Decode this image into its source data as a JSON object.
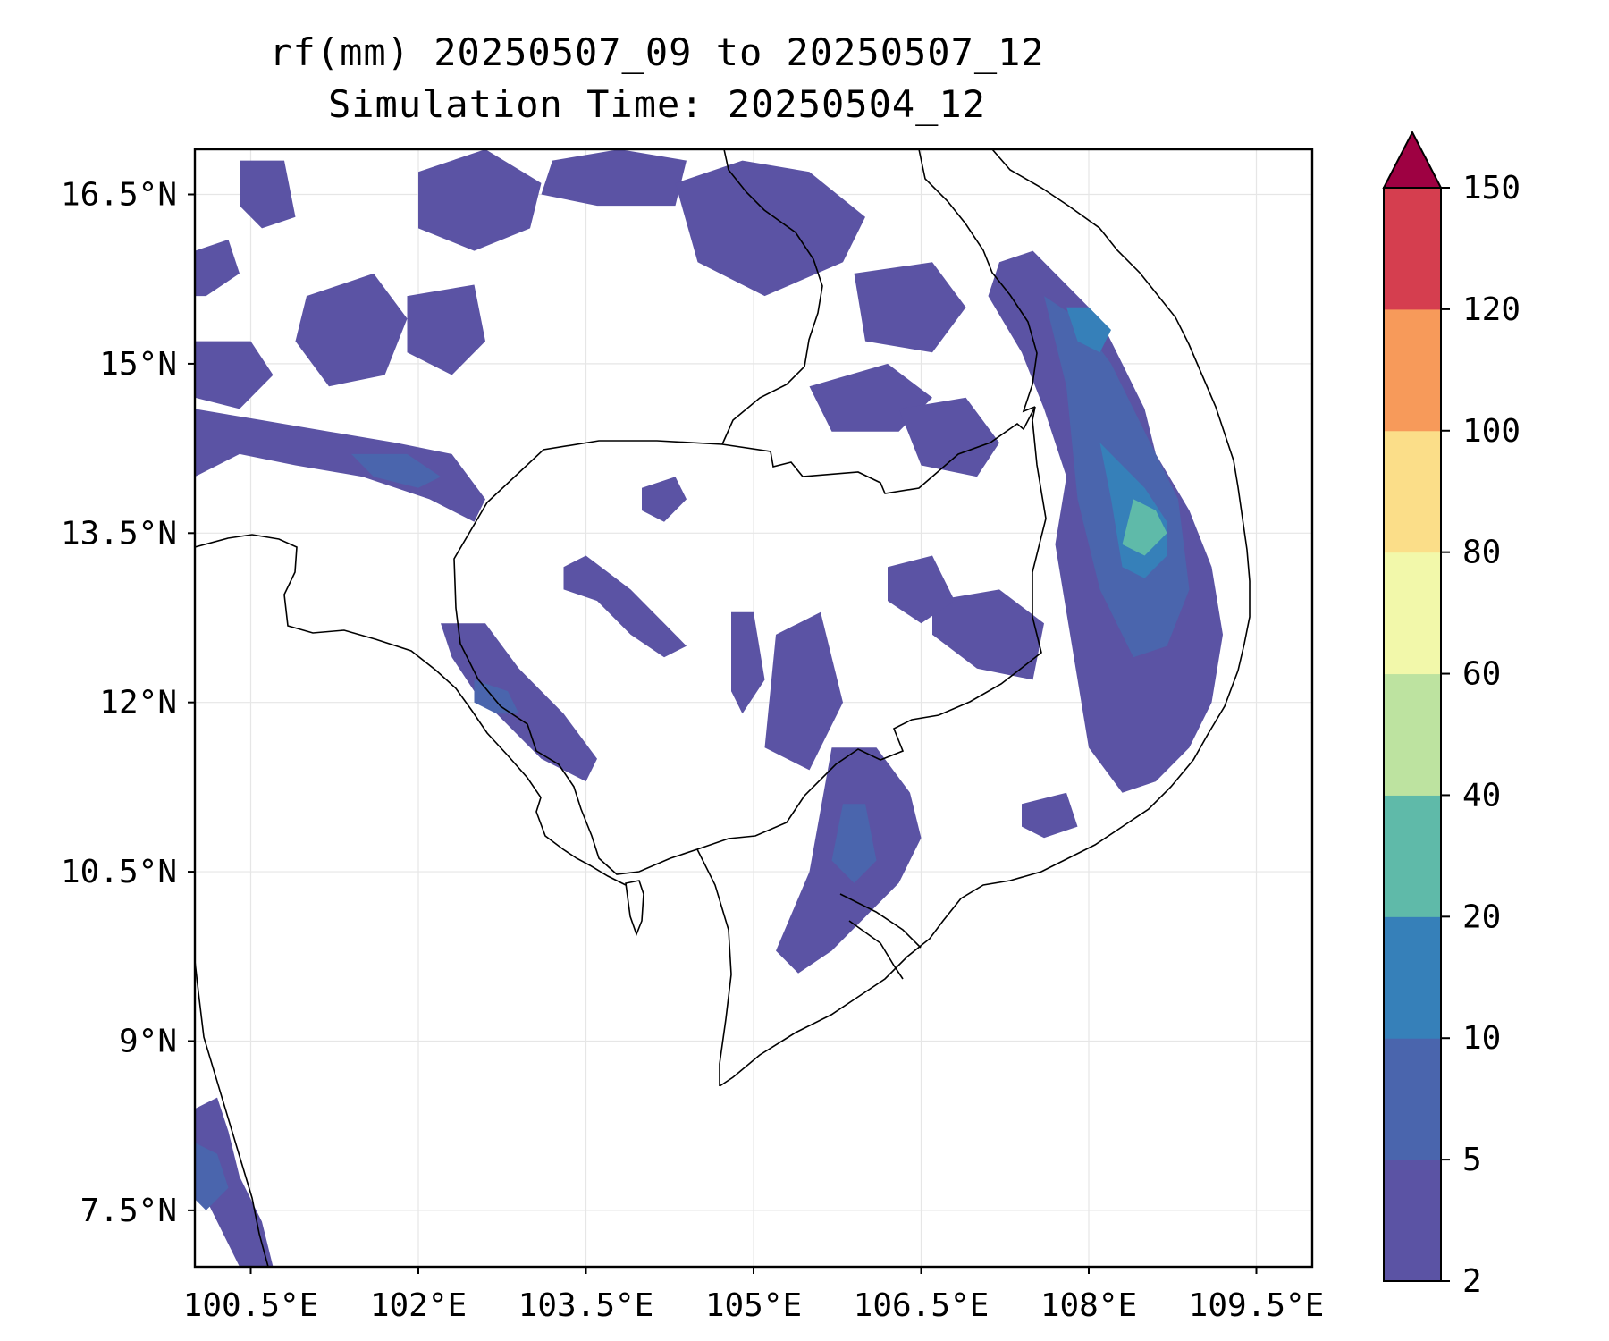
{
  "title": {
    "line1": "rf(mm) 20250507_09 to 20250507_12",
    "line2": "Simulation Time: 20250504_12"
  },
  "map": {
    "lon_range": [
      100.0,
      110.0
    ],
    "lat_range": [
      7.0,
      16.9
    ],
    "lon_ticks": [
      100.5,
      102,
      103.5,
      105,
      106.5,
      108,
      109.5
    ],
    "lon_tick_labels": [
      "100.5°E",
      "102°E",
      "103.5°E",
      "105°E",
      "106.5°E",
      "108°E",
      "109.5°E"
    ],
    "lat_ticks": [
      16.5,
      15,
      13.5,
      12,
      10.5,
      9,
      7.5
    ],
    "lat_tick_labels": [
      "16.5°N",
      "15°N",
      "13.5°N",
      "12°N",
      "10.5°N",
      "9°N",
      "7.5°N"
    ],
    "gridlines": true,
    "coastline_color": "#000000"
  },
  "colorbar": {
    "levels": [
      2,
      5,
      10,
      20,
      40,
      60,
      80,
      100,
      120,
      150
    ],
    "level_labels": [
      "2",
      "5",
      "10",
      "20",
      "40",
      "60",
      "80",
      "100",
      "120",
      "150"
    ],
    "colors": [
      "#5b53a4",
      "#4a65ad",
      "#3680b9",
      "#5fbaa9",
      "#bde3a0",
      "#f2f8aa",
      "#fbde89",
      "#f79a5a",
      "#d53e4f"
    ],
    "extend_color": "#9e0142",
    "extend": "max"
  },
  "rain_areas": [
    {
      "name": "central-highlands-band",
      "level": 1,
      "lons": [
        107.2,
        107.5,
        107.8,
        108.1,
        108.3,
        108.5,
        108.6,
        108.9,
        109.1,
        109.2,
        109.1,
        108.9,
        108.6,
        108.3,
        108.0,
        107.9,
        107.8,
        107.7,
        107.8,
        107.6,
        107.4,
        107.1
      ],
      "lats": [
        15.9,
        16.0,
        15.7,
        15.4,
        15.0,
        14.6,
        14.2,
        13.7,
        13.2,
        12.6,
        12.0,
        11.6,
        11.3,
        11.2,
        11.6,
        12.2,
        12.8,
        13.4,
        14.0,
        14.6,
        15.1,
        15.6
      ]
    },
    {
      "name": "central-highlands-core",
      "level": 2,
      "lons": [
        107.6,
        107.9,
        108.2,
        108.5,
        108.8,
        108.9,
        108.7,
        108.4,
        108.1,
        107.9,
        107.8
      ],
      "lats": [
        15.6,
        15.4,
        15.0,
        14.4,
        13.8,
        13.0,
        12.5,
        12.4,
        13.0,
        13.8,
        14.8
      ]
    },
    {
      "name": "central-highlands-peak",
      "level": 3,
      "lons": [
        108.1,
        108.3,
        108.5,
        108.7,
        108.7,
        108.5,
        108.3,
        108.2
      ],
      "lats": [
        14.3,
        14.1,
        13.9,
        13.6,
        13.3,
        13.1,
        13.2,
        13.8
      ]
    },
    {
      "name": "central-highlands-peak-2",
      "level": 4,
      "lons": [
        108.4,
        108.6,
        108.7,
        108.5,
        108.3
      ],
      "lats": [
        13.8,
        13.7,
        13.5,
        13.3,
        13.4
      ]
    },
    {
      "name": "central-highlands-north",
      "level": 3,
      "lons": [
        107.8,
        108.0,
        108.2,
        108.1,
        107.9
      ],
      "lats": [
        15.5,
        15.5,
        15.3,
        15.1,
        15.2
      ]
    },
    {
      "name": "nw-band",
      "level": 1,
      "lons": [
        100.0,
        100.6,
        101.2,
        101.8,
        102.3,
        102.6,
        102.5,
        102.1,
        101.5,
        100.9,
        100.4,
        100.0
      ],
      "lats": [
        14.6,
        14.5,
        14.4,
        14.3,
        14.2,
        13.8,
        13.6,
        13.8,
        14.0,
        14.1,
        14.2,
        14.0
      ]
    },
    {
      "name": "nw-band-core",
      "level": 2,
      "lons": [
        101.4,
        101.9,
        102.2,
        102.0,
        101.6
      ],
      "lats": [
        14.2,
        14.2,
        14.0,
        13.9,
        14.0
      ]
    },
    {
      "name": "north-patch-1",
      "level": 1,
      "lons": [
        100.4,
        100.8,
        100.9,
        100.6,
        100.4
      ],
      "lats": [
        16.8,
        16.8,
        16.3,
        16.2,
        16.4
      ]
    },
    {
      "name": "north-patch-2",
      "level": 1,
      "lons": [
        101.0,
        101.6,
        101.9,
        101.7,
        101.2,
        100.9
      ],
      "lats": [
        15.6,
        15.8,
        15.4,
        14.9,
        14.8,
        15.2
      ]
    },
    {
      "name": "north-patch-3",
      "level": 1,
      "lons": [
        101.9,
        102.5,
        102.6,
        102.3,
        101.9
      ],
      "lats": [
        15.6,
        15.7,
        15.2,
        14.9,
        15.1
      ]
    },
    {
      "name": "north-patch-4",
      "level": 1,
      "lons": [
        102.0,
        102.6,
        103.1,
        103.0,
        102.5,
        102.0
      ],
      "lats": [
        16.7,
        16.9,
        16.6,
        16.2,
        16.0,
        16.2
      ]
    },
    {
      "name": "north-patch-5",
      "level": 1,
      "lons": [
        103.2,
        103.8,
        104.4,
        104.3,
        103.6,
        103.1
      ],
      "lats": [
        16.8,
        16.9,
        16.8,
        16.4,
        16.4,
        16.5
      ]
    },
    {
      "name": "north-patch-6",
      "level": 1,
      "lons": [
        104.3,
        104.9,
        105.5,
        106.0,
        105.8,
        105.1,
        104.5
      ],
      "lats": [
        16.6,
        16.8,
        16.7,
        16.3,
        15.9,
        15.6,
        15.9
      ]
    },
    {
      "name": "north-patch-7",
      "level": 1,
      "lons": [
        105.9,
        106.6,
        106.9,
        106.6,
        106.0
      ],
      "lats": [
        15.8,
        15.9,
        15.5,
        15.1,
        15.2
      ]
    },
    {
      "name": "north-patch-8",
      "level": 1,
      "lons": [
        105.5,
        106.2,
        106.6,
        106.3,
        105.7
      ],
      "lats": [
        14.8,
        15.0,
        14.7,
        14.4,
        14.4
      ]
    },
    {
      "name": "north-patch-9",
      "level": 1,
      "lons": [
        106.3,
        106.9,
        107.2,
        107.0,
        106.5
      ],
      "lats": [
        14.6,
        14.7,
        14.3,
        14.0,
        14.1
      ]
    },
    {
      "name": "west-patch-1",
      "level": 1,
      "lons": [
        100.0,
        100.5,
        100.7,
        100.4,
        100.0
      ],
      "lats": [
        15.2,
        15.2,
        14.9,
        14.6,
        14.7
      ]
    },
    {
      "name": "west-patch-2",
      "level": 1,
      "lons": [
        100.0,
        100.3,
        100.4,
        100.1,
        100.0
      ],
      "lats": [
        16.0,
        16.1,
        15.8,
        15.6,
        15.6
      ]
    },
    {
      "name": "cardamom-coast",
      "level": 1,
      "lons": [
        102.2,
        102.6,
        102.9,
        103.3,
        103.6,
        103.5,
        103.1,
        102.8,
        102.5,
        102.3
      ],
      "lats": [
        12.7,
        12.7,
        12.3,
        11.9,
        11.5,
        11.3,
        11.5,
        11.8,
        12.1,
        12.4
      ]
    },
    {
      "name": "cardamom-coast-core",
      "level": 2,
      "lons": [
        102.5,
        102.8,
        102.9,
        102.7,
        102.5
      ],
      "lats": [
        12.2,
        12.1,
        11.9,
        11.9,
        12.0
      ]
    },
    {
      "name": "tonle-sap-band",
      "level": 1,
      "lons": [
        103.3,
        103.5,
        103.9,
        104.2,
        104.4,
        104.2,
        103.9,
        103.6,
        103.3
      ],
      "lats": [
        13.2,
        13.3,
        13.0,
        12.7,
        12.5,
        12.4,
        12.6,
        12.9,
        13.0
      ]
    },
    {
      "name": "central-streak-1",
      "level": 1,
      "lons": [
        104.8,
        105.0,
        105.1,
        104.9,
        104.8
      ],
      "lats": [
        12.8,
        12.8,
        12.2,
        11.9,
        12.1
      ]
    },
    {
      "name": "central-streak-2",
      "level": 1,
      "lons": [
        105.2,
        105.6,
        105.8,
        105.5,
        105.1
      ],
      "lats": [
        12.6,
        12.8,
        12.0,
        11.4,
        11.6
      ]
    },
    {
      "name": "central-streak-3",
      "level": 1,
      "lons": [
        104.0,
        104.3,
        104.4,
        104.2,
        104.0
      ],
      "lats": [
        13.9,
        14.0,
        13.8,
        13.6,
        13.7
      ]
    },
    {
      "name": "east-cambodia-patch",
      "level": 1,
      "lons": [
        106.6,
        107.2,
        107.6,
        107.5,
        107.0,
        106.6
      ],
      "lats": [
        12.9,
        13.0,
        12.7,
        12.2,
        12.3,
        12.6
      ]
    },
    {
      "name": "east-cambodia-patch-2",
      "level": 1,
      "lons": [
        106.2,
        106.6,
        106.8,
        106.5,
        106.2
      ],
      "lats": [
        13.2,
        13.3,
        12.9,
        12.7,
        12.9
      ]
    },
    {
      "name": "delta-band",
      "level": 1,
      "lons": [
        105.7,
        106.1,
        106.4,
        106.5,
        106.3,
        106.0,
        105.7,
        105.4,
        105.2,
        105.5
      ],
      "lats": [
        11.6,
        11.6,
        11.2,
        10.8,
        10.4,
        10.1,
        9.8,
        9.6,
        9.8,
        10.5
      ]
    },
    {
      "name": "delta-band-core",
      "level": 2,
      "lons": [
        105.8,
        106.0,
        106.1,
        105.9,
        105.7
      ],
      "lats": [
        11.1,
        11.1,
        10.6,
        10.4,
        10.6
      ]
    },
    {
      "name": "se-vietnam-patch",
      "level": 1,
      "lons": [
        107.4,
        107.8,
        107.9,
        107.6,
        107.4
      ],
      "lats": [
        11.1,
        11.2,
        10.9,
        10.8,
        10.9
      ]
    },
    {
      "name": "malay-peninsula",
      "level": 1,
      "lons": [
        100.0,
        100.2,
        100.3,
        100.4,
        100.6,
        100.7,
        100.4,
        100.2,
        100.0
      ],
      "lats": [
        8.4,
        8.5,
        8.2,
        7.8,
        7.4,
        7.0,
        7.0,
        7.4,
        7.8
      ]
    },
    {
      "name": "malay-peninsula-core",
      "level": 2,
      "lons": [
        100.0,
        100.2,
        100.3,
        100.1,
        100.0
      ],
      "lats": [
        8.1,
        8.0,
        7.7,
        7.5,
        7.6
      ]
    }
  ]
}
